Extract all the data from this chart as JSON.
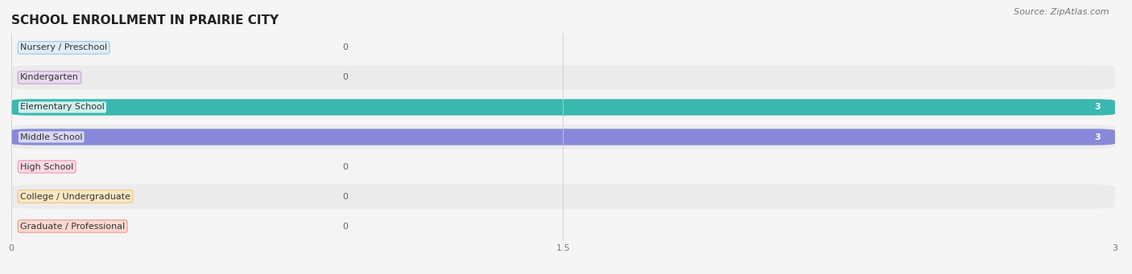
{
  "title": "SCHOOL ENROLLMENT IN PRAIRIE CITY",
  "source": "Source: ZipAtlas.com",
  "categories": [
    "Nursery / Preschool",
    "Kindergarten",
    "Elementary School",
    "Middle School",
    "High School",
    "College / Undergraduate",
    "Graduate / Professional"
  ],
  "values": [
    0,
    0,
    3,
    3,
    0,
    0,
    0
  ],
  "bar_colors": [
    "#aacde8",
    "#c8aed4",
    "#3ab8b0",
    "#8888d8",
    "#f5a8bc",
    "#f5c888",
    "#f0a898"
  ],
  "label_bg_colors": [
    "#ddeef8",
    "#e8d8f0",
    "#d0f0ec",
    "#d8d8f4",
    "#fcd8e4",
    "#fae8c4",
    "#fbd8d0"
  ],
  "label_border_colors": [
    "#aacde8",
    "#c8aed4",
    "#3ab8b0",
    "#8888d8",
    "#f5a8bc",
    "#f5c888",
    "#f0a898"
  ],
  "row_colors": [
    "#f4f4f4",
    "#ebebeb"
  ],
  "xlim": [
    0,
    3
  ],
  "xticks": [
    0,
    1.5,
    3
  ],
  "xtick_labels": [
    "0",
    "1.5",
    "3"
  ],
  "title_fontsize": 11,
  "source_fontsize": 8,
  "label_fontsize": 8,
  "value_fontsize": 8,
  "figsize": [
    14.06,
    3.41
  ],
  "dpi": 100
}
